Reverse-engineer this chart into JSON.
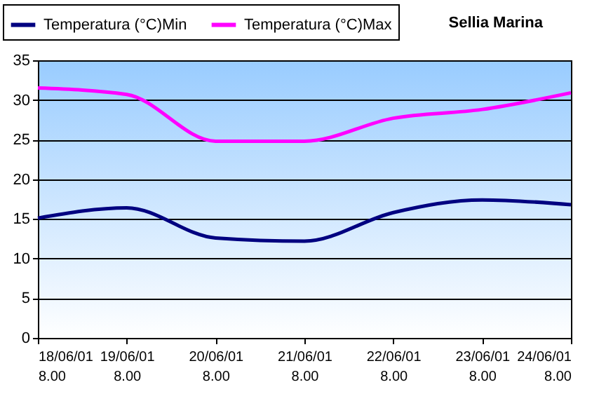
{
  "chart_data": {
    "type": "line",
    "title": "Sellia Marina",
    "categories": [
      "18/06/01 8.00",
      "19/06/01 8.00",
      "20/06/01 8.00",
      "21/06/01 8.00",
      "22/06/01 8.00",
      "23/06/01 8.00",
      "24/06/01 8.00"
    ],
    "series": [
      {
        "name": "Temperatura (°C)Min",
        "color": "#000080",
        "values": [
          15.1,
          16.4,
          12.6,
          12.2,
          15.8,
          17.4,
          16.8
        ]
      },
      {
        "name": "Temperatura (°C)Max",
        "color": "#ff00ff",
        "values": [
          31.5,
          30.7,
          24.8,
          24.8,
          27.7,
          28.8,
          30.9
        ]
      }
    ],
    "ylim": [
      0,
      35
    ],
    "yticks": [
      0,
      5,
      10,
      15,
      20,
      25,
      30,
      35
    ],
    "grid": "y",
    "legend": "top left",
    "marker": "none",
    "line_style": "solid"
  }
}
